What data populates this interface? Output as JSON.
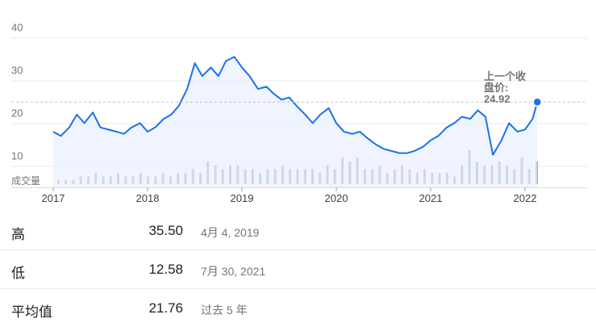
{
  "chart_data": {
    "type": "line",
    "ylim": [
      5,
      45
    ],
    "y_ticks": [
      "40",
      "30",
      "20",
      "10"
    ],
    "x_ticks": [
      "2017",
      "2018",
      "2019",
      "2020",
      "2021",
      "2022"
    ],
    "volume_label": "成交量",
    "previous_close_label": "上一个收盘价:",
    "previous_close_value": "24.92",
    "colors": {
      "line": "#1a73e8",
      "fill": "#e8f0fe",
      "volume": "#9aa0a6",
      "grid": "#e8eaed",
      "ref_line": "#bdc1c6"
    },
    "series": [
      {
        "x": [
          2017.0,
          2017.08,
          2017.17,
          2017.25,
          2017.33,
          2017.42,
          2017.5,
          2017.58,
          2017.67,
          2017.75,
          2017.83,
          2017.92,
          2018.0,
          2018.08,
          2018.17,
          2018.25,
          2018.33,
          2018.42,
          2018.5,
          2018.58,
          2018.67,
          2018.75,
          2018.83,
          2018.92,
          2019.0,
          2019.08,
          2019.17,
          2019.26,
          2019.33,
          2019.42,
          2019.5,
          2019.58,
          2019.67,
          2019.75,
          2019.83,
          2019.92,
          2020.0,
          2020.08,
          2020.17,
          2020.25,
          2020.33,
          2020.42,
          2020.5,
          2020.58,
          2020.67,
          2020.75,
          2020.83,
          2020.92,
          2021.0,
          2021.08,
          2021.17,
          2021.25,
          2021.33,
          2021.42,
          2021.5,
          2021.58,
          2021.66,
          2021.75,
          2021.83,
          2021.92,
          2022.0,
          2022.08,
          2022.13
        ],
        "values": [
          18.0,
          17.0,
          19.0,
          22.0,
          20.0,
          22.5,
          19.0,
          18.5,
          18.0,
          17.5,
          19.0,
          20.0,
          18.0,
          19.0,
          21.0,
          22.0,
          24.0,
          28.0,
          34.0,
          31.0,
          33.0,
          31.0,
          34.5,
          35.5,
          33.0,
          31.0,
          28.0,
          28.5,
          27.0,
          25.5,
          26.0,
          24.0,
          22.0,
          20.0,
          22.0,
          23.5,
          20.0,
          18.0,
          17.5,
          18.0,
          16.5,
          15.0,
          14.0,
          13.5,
          13.0,
          13.0,
          13.5,
          14.5,
          16.0,
          17.0,
          19.0,
          20.0,
          21.5,
          21.0,
          23.0,
          21.5,
          12.58,
          16.0,
          20.0,
          18.0,
          18.5,
          21.0,
          24.92
        ]
      }
    ],
    "volume": [
      1,
      1,
      1,
      2,
      2,
      3,
      2,
      2,
      3,
      2,
      2,
      3,
      2,
      2,
      3,
      2,
      3,
      3,
      4,
      3,
      6,
      5,
      4,
      5,
      5,
      4,
      4,
      3,
      4,
      4,
      5,
      4,
      4,
      4,
      4,
      3,
      5,
      4,
      7,
      6,
      7,
      4,
      4,
      5,
      3,
      4,
      5,
      4,
      3,
      4,
      3,
      3,
      3,
      2,
      5,
      9,
      6,
      5,
      5,
      6,
      5,
      4,
      7,
      4,
      6
    ]
  },
  "stats": [
    {
      "label": "高",
      "value": "35.50",
      "note": "4月 4, 2019"
    },
    {
      "label": "低",
      "value": "12.58",
      "note": "7月 30, 2021"
    },
    {
      "label": "平均值",
      "value": "21.76",
      "note": "过去 5 年"
    }
  ]
}
